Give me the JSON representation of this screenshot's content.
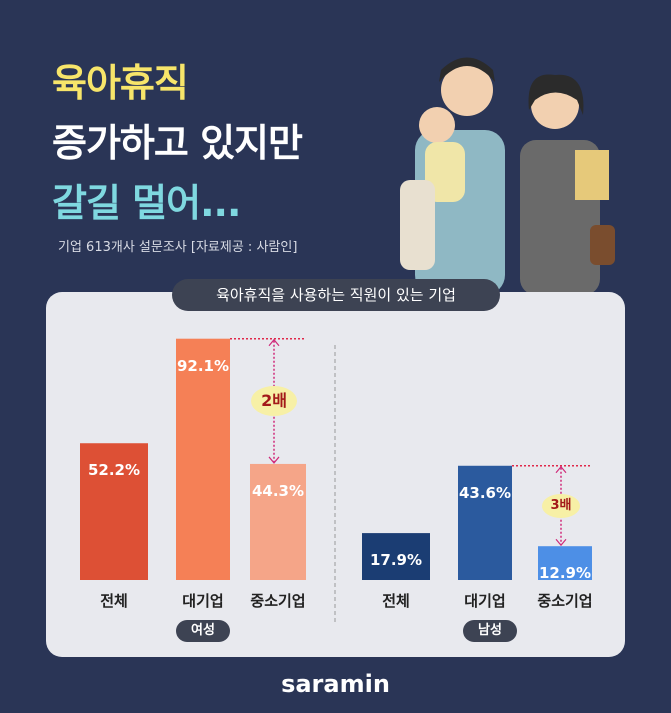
{
  "title": {
    "line1": "육아휴직",
    "line2": "증가하고 있지만",
    "line3": "갈길 멀어..."
  },
  "subtitle": "기업 613개사 설문조사 [자료제공 : 사람인]",
  "logo": "saramin",
  "chart_data": {
    "type": "bar",
    "title": "육아휴직을 사용하는 직원이 있는 기업",
    "unit": "%",
    "groups": [
      {
        "name": "여성",
        "categories": [
          "전체",
          "대기업",
          "중소기업"
        ],
        "values": [
          52.2,
          92.1,
          44.3
        ],
        "labels": [
          "52.2%",
          "92.1%",
          "44.3%"
        ],
        "colors": [
          "#dd5035",
          "#f58056",
          "#f5a588"
        ],
        "annotation": "2배"
      },
      {
        "name": "남성",
        "categories": [
          "전체",
          "대기업",
          "중소기업"
        ],
        "values": [
          17.9,
          43.6,
          12.9
        ],
        "labels": [
          "17.9%",
          "43.6%",
          "12.9%"
        ],
        "colors": [
          "#1b3d73",
          "#2b5a9e",
          "#4d8fe6"
        ],
        "annotation": "3배"
      }
    ]
  },
  "colors": {
    "background": "#2a3556",
    "panel": "#e8e9ee",
    "title_yellow": "#f7e56a",
    "title_cyan": "#7fd8e0"
  }
}
